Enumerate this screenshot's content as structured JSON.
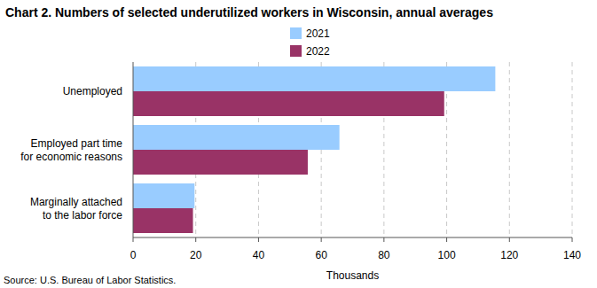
{
  "chart_data": {
    "type": "bar",
    "orientation": "horizontal",
    "title": "Chart 2. Numbers of selected underutilized workers in Wisconsin, annual averages",
    "categories": [
      "Unemployed",
      "Employed part time\nfor economic reasons",
      "Marginally attached\nto the labor force"
    ],
    "series": [
      {
        "name": "2021",
        "color": "#99ccff",
        "values": [
          115.5,
          65.8,
          19.6
        ]
      },
      {
        "name": "2022",
        "color": "#993366",
        "values": [
          99.2,
          55.7,
          19.1
        ]
      }
    ],
    "x_label": "Thousands",
    "xlim": [
      0,
      140
    ],
    "xticks": [
      0,
      20,
      40,
      60,
      80,
      100,
      120,
      140
    ],
    "grid": true,
    "legend": "top",
    "source": "Source: U.S. Bureau of Labor Statistics."
  }
}
